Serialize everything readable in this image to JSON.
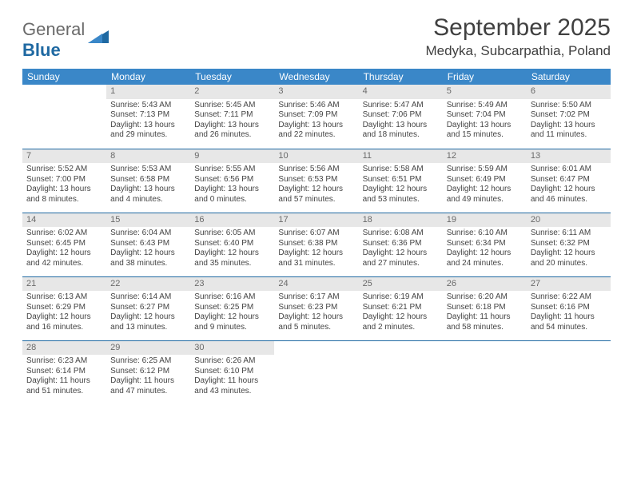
{
  "logo": {
    "word1": "General",
    "word2": "Blue"
  },
  "title": "September 2025",
  "location": "Medyka, Subcarpathia, Poland",
  "colors": {
    "header_bg": "#3a87c8",
    "header_text": "#ffffff",
    "daynum_bg": "#e7e7e7",
    "daynum_text": "#6a6a6a",
    "row_border": "#1f69a2",
    "body_text": "#444444",
    "logo_gray": "#6a6a6a",
    "logo_blue": "#1f69a2"
  },
  "typography": {
    "title_fontsize": 30,
    "location_fontsize": 17,
    "dayheader_fontsize": 12,
    "daynum_fontsize": 11,
    "body_fontsize": 10
  },
  "day_headers": [
    "Sunday",
    "Monday",
    "Tuesday",
    "Wednesday",
    "Thursday",
    "Friday",
    "Saturday"
  ],
  "weeks": [
    [
      {
        "num": "",
        "sunrise": "",
        "sunset": "",
        "daylight": ""
      },
      {
        "num": "1",
        "sunrise": "Sunrise: 5:43 AM",
        "sunset": "Sunset: 7:13 PM",
        "daylight": "Daylight: 13 hours and 29 minutes."
      },
      {
        "num": "2",
        "sunrise": "Sunrise: 5:45 AM",
        "sunset": "Sunset: 7:11 PM",
        "daylight": "Daylight: 13 hours and 26 minutes."
      },
      {
        "num": "3",
        "sunrise": "Sunrise: 5:46 AM",
        "sunset": "Sunset: 7:09 PM",
        "daylight": "Daylight: 13 hours and 22 minutes."
      },
      {
        "num": "4",
        "sunrise": "Sunrise: 5:47 AM",
        "sunset": "Sunset: 7:06 PM",
        "daylight": "Daylight: 13 hours and 18 minutes."
      },
      {
        "num": "5",
        "sunrise": "Sunrise: 5:49 AM",
        "sunset": "Sunset: 7:04 PM",
        "daylight": "Daylight: 13 hours and 15 minutes."
      },
      {
        "num": "6",
        "sunrise": "Sunrise: 5:50 AM",
        "sunset": "Sunset: 7:02 PM",
        "daylight": "Daylight: 13 hours and 11 minutes."
      }
    ],
    [
      {
        "num": "7",
        "sunrise": "Sunrise: 5:52 AM",
        "sunset": "Sunset: 7:00 PM",
        "daylight": "Daylight: 13 hours and 8 minutes."
      },
      {
        "num": "8",
        "sunrise": "Sunrise: 5:53 AM",
        "sunset": "Sunset: 6:58 PM",
        "daylight": "Daylight: 13 hours and 4 minutes."
      },
      {
        "num": "9",
        "sunrise": "Sunrise: 5:55 AM",
        "sunset": "Sunset: 6:56 PM",
        "daylight": "Daylight: 13 hours and 0 minutes."
      },
      {
        "num": "10",
        "sunrise": "Sunrise: 5:56 AM",
        "sunset": "Sunset: 6:53 PM",
        "daylight": "Daylight: 12 hours and 57 minutes."
      },
      {
        "num": "11",
        "sunrise": "Sunrise: 5:58 AM",
        "sunset": "Sunset: 6:51 PM",
        "daylight": "Daylight: 12 hours and 53 minutes."
      },
      {
        "num": "12",
        "sunrise": "Sunrise: 5:59 AM",
        "sunset": "Sunset: 6:49 PM",
        "daylight": "Daylight: 12 hours and 49 minutes."
      },
      {
        "num": "13",
        "sunrise": "Sunrise: 6:01 AM",
        "sunset": "Sunset: 6:47 PM",
        "daylight": "Daylight: 12 hours and 46 minutes."
      }
    ],
    [
      {
        "num": "14",
        "sunrise": "Sunrise: 6:02 AM",
        "sunset": "Sunset: 6:45 PM",
        "daylight": "Daylight: 12 hours and 42 minutes."
      },
      {
        "num": "15",
        "sunrise": "Sunrise: 6:04 AM",
        "sunset": "Sunset: 6:43 PM",
        "daylight": "Daylight: 12 hours and 38 minutes."
      },
      {
        "num": "16",
        "sunrise": "Sunrise: 6:05 AM",
        "sunset": "Sunset: 6:40 PM",
        "daylight": "Daylight: 12 hours and 35 minutes."
      },
      {
        "num": "17",
        "sunrise": "Sunrise: 6:07 AM",
        "sunset": "Sunset: 6:38 PM",
        "daylight": "Daylight: 12 hours and 31 minutes."
      },
      {
        "num": "18",
        "sunrise": "Sunrise: 6:08 AM",
        "sunset": "Sunset: 6:36 PM",
        "daylight": "Daylight: 12 hours and 27 minutes."
      },
      {
        "num": "19",
        "sunrise": "Sunrise: 6:10 AM",
        "sunset": "Sunset: 6:34 PM",
        "daylight": "Daylight: 12 hours and 24 minutes."
      },
      {
        "num": "20",
        "sunrise": "Sunrise: 6:11 AM",
        "sunset": "Sunset: 6:32 PM",
        "daylight": "Daylight: 12 hours and 20 minutes."
      }
    ],
    [
      {
        "num": "21",
        "sunrise": "Sunrise: 6:13 AM",
        "sunset": "Sunset: 6:29 PM",
        "daylight": "Daylight: 12 hours and 16 minutes."
      },
      {
        "num": "22",
        "sunrise": "Sunrise: 6:14 AM",
        "sunset": "Sunset: 6:27 PM",
        "daylight": "Daylight: 12 hours and 13 minutes."
      },
      {
        "num": "23",
        "sunrise": "Sunrise: 6:16 AM",
        "sunset": "Sunset: 6:25 PM",
        "daylight": "Daylight: 12 hours and 9 minutes."
      },
      {
        "num": "24",
        "sunrise": "Sunrise: 6:17 AM",
        "sunset": "Sunset: 6:23 PM",
        "daylight": "Daylight: 12 hours and 5 minutes."
      },
      {
        "num": "25",
        "sunrise": "Sunrise: 6:19 AM",
        "sunset": "Sunset: 6:21 PM",
        "daylight": "Daylight: 12 hours and 2 minutes."
      },
      {
        "num": "26",
        "sunrise": "Sunrise: 6:20 AM",
        "sunset": "Sunset: 6:18 PM",
        "daylight": "Daylight: 11 hours and 58 minutes."
      },
      {
        "num": "27",
        "sunrise": "Sunrise: 6:22 AM",
        "sunset": "Sunset: 6:16 PM",
        "daylight": "Daylight: 11 hours and 54 minutes."
      }
    ],
    [
      {
        "num": "28",
        "sunrise": "Sunrise: 6:23 AM",
        "sunset": "Sunset: 6:14 PM",
        "daylight": "Daylight: 11 hours and 51 minutes."
      },
      {
        "num": "29",
        "sunrise": "Sunrise: 6:25 AM",
        "sunset": "Sunset: 6:12 PM",
        "daylight": "Daylight: 11 hours and 47 minutes."
      },
      {
        "num": "30",
        "sunrise": "Sunrise: 6:26 AM",
        "sunset": "Sunset: 6:10 PM",
        "daylight": "Daylight: 11 hours and 43 minutes."
      },
      {
        "num": "",
        "sunrise": "",
        "sunset": "",
        "daylight": ""
      },
      {
        "num": "",
        "sunrise": "",
        "sunset": "",
        "daylight": ""
      },
      {
        "num": "",
        "sunrise": "",
        "sunset": "",
        "daylight": ""
      },
      {
        "num": "",
        "sunrise": "",
        "sunset": "",
        "daylight": ""
      }
    ]
  ]
}
